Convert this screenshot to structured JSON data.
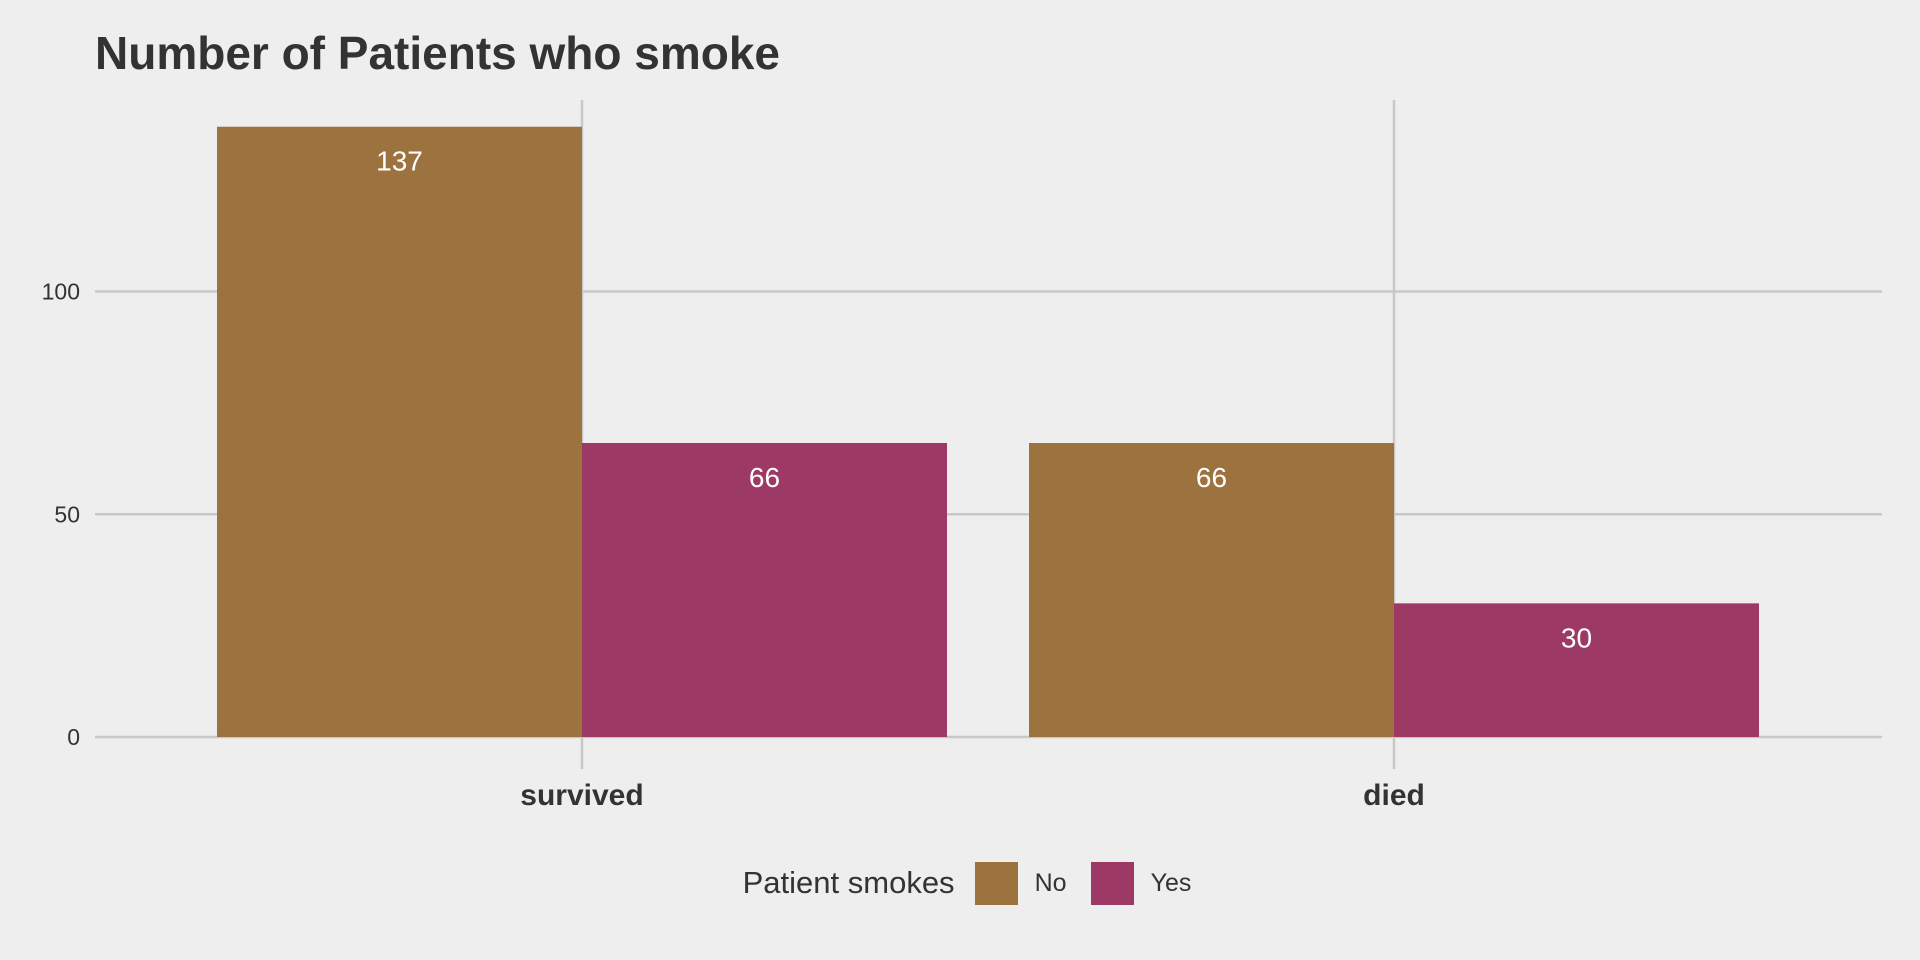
{
  "chart_data": {
    "type": "bar",
    "title": "Number of Patients who smoke",
    "xlabel": "",
    "ylabel": "",
    "categories": [
      "survived",
      "died"
    ],
    "series": [
      {
        "name": "No",
        "values": [
          137,
          66
        ],
        "color": "#9c723e"
      },
      {
        "name": "Yes",
        "values": [
          66,
          30
        ],
        "color": "#9c3964"
      }
    ],
    "ylim": [
      0,
      143
    ],
    "yticks": [
      0,
      50,
      100
    ],
    "data_labels": true,
    "grid": true,
    "legend": {
      "title": "Patient smokes",
      "placement": "bottom"
    },
    "colors": {
      "background": "#eeeeee",
      "gridline": "#c8c8c8",
      "text": "#333333",
      "data_label": "#ffffff"
    }
  }
}
